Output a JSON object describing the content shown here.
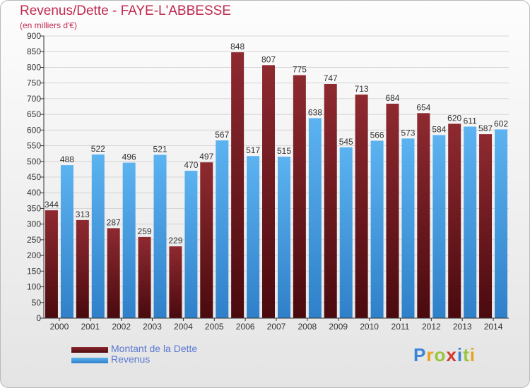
{
  "title": "Revenus/Dette - FAYE-L'ABBESSE",
  "subtitle": "(en milliers d'€)",
  "colors": {
    "dette": "#7a1f25",
    "revenus": "#4aa3e6",
    "title": "#c0284e",
    "legend": "#5a78d2"
  },
  "chart_data": {
    "type": "bar",
    "title": "Revenus/Dette - FAYE-L'ABBESSE",
    "ylabel": "(en milliers d'€)",
    "xlabel": "",
    "ylim": [
      0,
      900
    ],
    "yticks": [
      0,
      50,
      100,
      150,
      200,
      250,
      300,
      350,
      400,
      450,
      500,
      550,
      600,
      650,
      700,
      750,
      800,
      850,
      900
    ],
    "grid": true,
    "categories": [
      "2000",
      "2001",
      "2002",
      "2003",
      "2004",
      "2005",
      "2006",
      "2007",
      "2008",
      "2009",
      "2010",
      "2011",
      "2012",
      "2013",
      "2014"
    ],
    "series": [
      {
        "name": "Montant de la Dette",
        "values": [
          344,
          313,
          287,
          259,
          229,
          497,
          848,
          807,
          775,
          747,
          713,
          684,
          654,
          620,
          587
        ]
      },
      {
        "name": "Revenus",
        "values": [
          488,
          522,
          496,
          521,
          470,
          567,
          517,
          515,
          638,
          545,
          566,
          573,
          584,
          611,
          602
        ]
      }
    ]
  },
  "legend": {
    "dette_label": "Montant de la Dette",
    "revenus_label": "Revenus"
  },
  "logo": {
    "letters": [
      "P",
      "r",
      "o",
      "x",
      "i",
      "t",
      "i"
    ],
    "colors": [
      "#3a84d8",
      "#e8a21b",
      "#9ac43c",
      "#d23a2a",
      "#3a84d8",
      "#9ac43c",
      "#e8a21b"
    ]
  }
}
